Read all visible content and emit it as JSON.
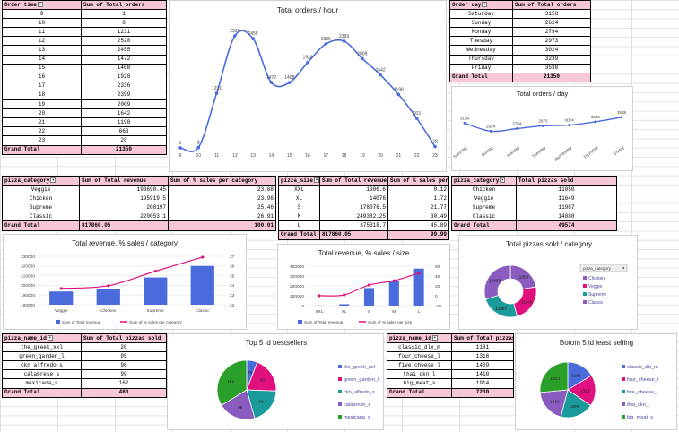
{
  "hour_table": {
    "col1": "Order time",
    "col2": "Sum of Total orders",
    "rows": [
      [
        "9",
        "1"
      ],
      [
        "10",
        "8"
      ],
      [
        "11",
        "1231"
      ],
      [
        "12",
        "2520"
      ],
      [
        "13",
        "2455"
      ],
      [
        "14",
        "1472"
      ],
      [
        "15",
        "1468"
      ],
      [
        "16",
        "1920"
      ],
      [
        "17",
        "2336"
      ],
      [
        "18",
        "2399"
      ],
      [
        "19",
        "2009"
      ],
      [
        "20",
        "1642"
      ],
      [
        "21",
        "1198"
      ],
      [
        "22",
        "663"
      ],
      [
        "23",
        "28"
      ]
    ],
    "total_label": "Grand Total",
    "total": "21350"
  },
  "day_table": {
    "col1": "Order day",
    "col2": "Sum of Total orders",
    "rows": [
      [
        "Saturday",
        "3158"
      ],
      [
        "Sunday",
        "2624"
      ],
      [
        "Monday",
        "2794"
      ],
      [
        "Tuesday",
        "2973"
      ],
      [
        "Wednesday",
        "3024"
      ],
      [
        "Thursday",
        "3239"
      ],
      [
        "Friday",
        "3538"
      ]
    ],
    "total_label": "Grand Total",
    "total": "21350"
  },
  "category_table": {
    "col1": "pizza_category",
    "col2": "Sum of Total revenue",
    "col3": "Sum of % sales per category",
    "rows": [
      [
        "Veggie",
        "193690.45",
        "23.68"
      ],
      [
        "Chicken",
        "195919.5",
        "23.96"
      ],
      [
        "Supreme",
        "208197",
        "25.46"
      ],
      [
        "Classic",
        "220053.1",
        "26.91"
      ]
    ],
    "total_label": "Grand Total",
    "total": "817860.05",
    "total_pct": "100.01"
  },
  "size_table": {
    "col1": "pizza_size",
    "col2": "Sum of Total revenue",
    "col3": "Sum of % sales per size",
    "rows": [
      [
        "XXL",
        "1006.6",
        "0.12"
      ],
      [
        "XL",
        "14076",
        "1.72"
      ],
      [
        "S",
        "178076.5",
        "21.77"
      ],
      [
        "M",
        "249382.25",
        "30.49"
      ],
      [
        "L",
        "375318.7",
        "45.89"
      ]
    ],
    "total_label": "Grand Total",
    "total": "817860.05",
    "total_pct": "99.99"
  },
  "cat_sold_table": {
    "col1": "pizza_category",
    "col2": "Total pizzas sold",
    "rows": [
      [
        "Chicken",
        "11050"
      ],
      [
        "Veggie",
        "11649"
      ],
      [
        "Supreme",
        "11987"
      ],
      [
        "Classic",
        "14888"
      ]
    ],
    "total_label": "Grand Total",
    "total": "49574"
  },
  "top5_table": {
    "col1": "pizza_name_id",
    "col2": "Sum of Total pizzas sold",
    "rows": [
      [
        "the_greek_xxl",
        "28"
      ],
      [
        "green_garden_l",
        "95"
      ],
      [
        "ckn_alfredo_s",
        "96"
      ],
      [
        "calabrese_s",
        "99"
      ],
      [
        "mexicana_s",
        "162"
      ]
    ],
    "total_label": "Grand Total",
    "total": "480"
  },
  "bottom5_table": {
    "col1": "pizza_name_id",
    "col2": "Sum of Total pizzas sold",
    "rows": [
      [
        "classic_dlx_m",
        "1181"
      ],
      [
        "four_cheese_l",
        "1316"
      ],
      [
        "five_cheese_l",
        "1409"
      ],
      [
        "thai_ckn_l",
        "1410"
      ],
      [
        "big_meat_s",
        "1914"
      ]
    ],
    "total_label": "Grand Total",
    "total": "7230"
  },
  "colors": {
    "blue": "#4a6bdc",
    "magenta": "#e0117f",
    "purple": "#8a5cc0",
    "teal": "#1a9a9a",
    "green": "#2aa02a",
    "header_pink": "#f6c6d9"
  },
  "chart_data": [
    {
      "id": "hours",
      "type": "line",
      "title": "Total orders / hour",
      "x": [
        "9",
        "10",
        "11",
        "12",
        "13",
        "14",
        "15",
        "16",
        "17",
        "18",
        "19",
        "20",
        "21",
        "22",
        "23"
      ],
      "values": [
        1,
        8,
        1231,
        2520,
        2455,
        1472,
        1468,
        1920,
        2336,
        2399,
        2009,
        1642,
        1198,
        663,
        28
      ]
    },
    {
      "id": "days",
      "type": "line",
      "title": "Total orders / day",
      "x": [
        "Saturday",
        "Sunday",
        "Monday",
        "Tuesday",
        "Wednesday",
        "Thursday",
        "Friday"
      ],
      "values": [
        3158,
        2624,
        2794,
        2973,
        3024,
        3239,
        3538
      ]
    },
    {
      "id": "cat_rev",
      "type": "bar",
      "title": "Total revenue, % sales / category",
      "categories": [
        "Veggie",
        "Chicken",
        "Supreme",
        "Classic"
      ],
      "series": [
        {
          "name": "Sum of Total revenue",
          "values": [
            193690.45,
            195919.5,
            208197,
            220053.1
          ]
        },
        {
          "name": "Sum of % sales per category",
          "values": [
            23.68,
            23.96,
            25.46,
            26.91
          ]
        }
      ],
      "y_ticks": [
        "230000",
        "220000",
        "210000",
        "200000",
        "190000",
        "180000"
      ],
      "y2_ticks": [
        "27",
        "26",
        "25",
        "24",
        "23",
        "22"
      ],
      "ylim": [
        180000,
        230000
      ],
      "y2lim": [
        22,
        27
      ]
    },
    {
      "id": "size_rev",
      "type": "bar",
      "title": "Total revenue, % sales / size",
      "categories": [
        "XXL",
        "XL",
        "S",
        "M",
        "L"
      ],
      "series": [
        {
          "name": "Sum of Total revenue",
          "values": [
            1006.6,
            14076,
            178076.5,
            249382.25,
            375318.7
          ]
        },
        {
          "name": "Sum of % sales per size",
          "values": [
            0.12,
            1.72,
            21.77,
            30.49,
            45.89
          ]
        }
      ],
      "y_ticks": [
        "400000",
        "300000",
        "200000",
        "100000",
        "0"
      ],
      "y2_ticks": [
        "60",
        "40",
        "20",
        "0",
        "-20"
      ],
      "ylim": [
        0,
        400000
      ],
      "y2lim": [
        -20,
        60
      ]
    },
    {
      "id": "cat_sold",
      "type": "pie",
      "title": "Total pizzas sold / category",
      "legend_title": "pizza_category",
      "labels": [
        "Chicken",
        "Veggie",
        "Supreme",
        "Classic"
      ],
      "values": [
        11050,
        11649,
        11987,
        14888
      ]
    },
    {
      "id": "top5",
      "type": "pie",
      "title": "Top 5 id bestsellers",
      "labels": [
        "the_greek_xxl",
        "green_garden_l",
        "ckn_alfredo_s",
        "calabrese_s",
        "mexicana_s"
      ],
      "values": [
        28,
        95,
        96,
        99,
        162
      ]
    },
    {
      "id": "bottom5",
      "type": "pie",
      "title": "Botom 5 id least selling",
      "labels": [
        "classic_dlx_m",
        "four_cheese_l",
        "five_cheese_l",
        "thai_ckn_l",
        "big_meat_s"
      ],
      "values": [
        1181,
        1316,
        1409,
        1410,
        1914
      ]
    }
  ]
}
